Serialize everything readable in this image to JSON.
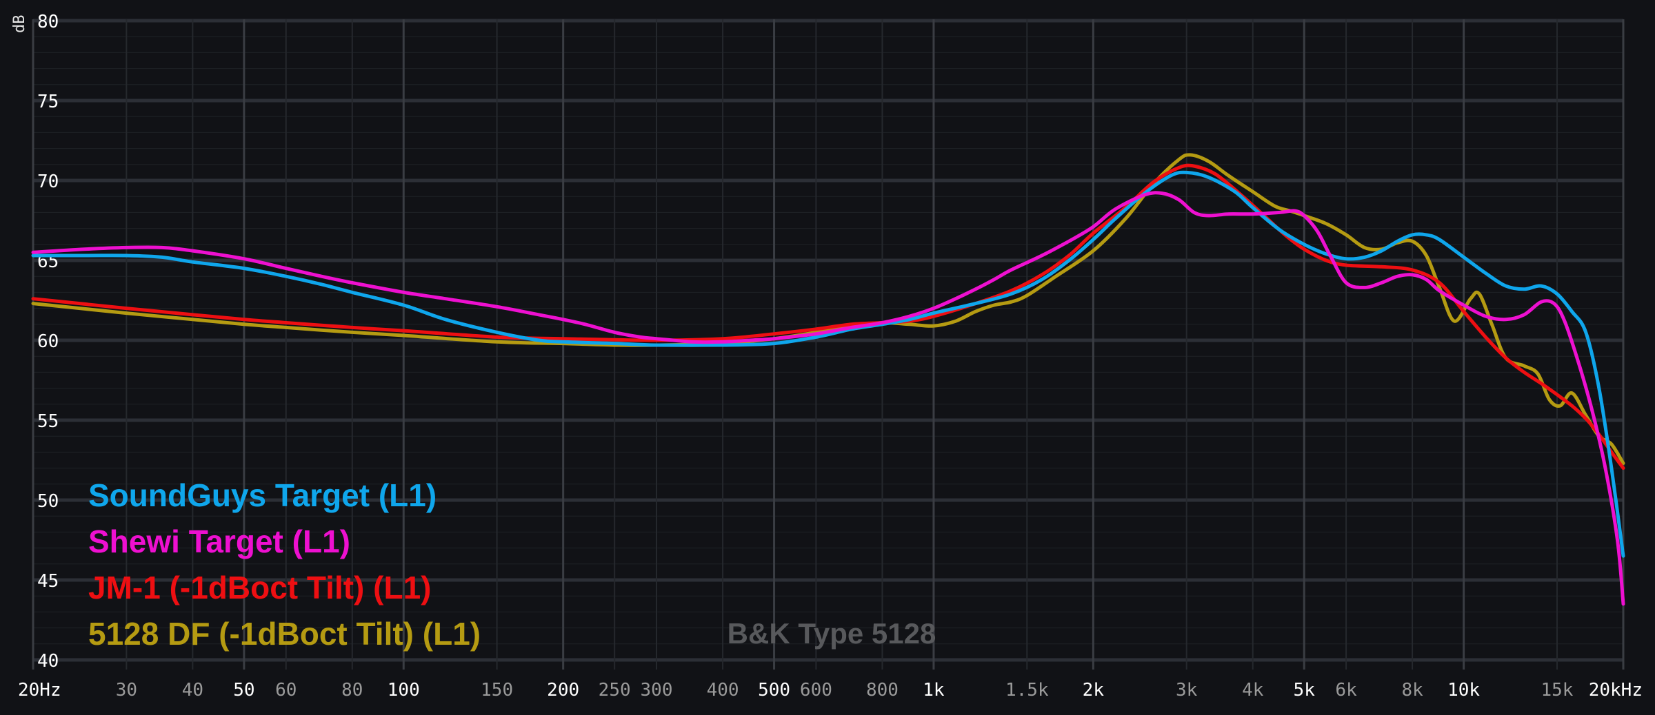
{
  "chart_data": {
    "type": "line",
    "title": "",
    "ylabel": "dB",
    "xlabel": "",
    "x_scale": "log",
    "xlim": [
      20,
      20000
    ],
    "ylim": [
      40,
      80
    ],
    "grid": true,
    "legend_position": "bottom-left",
    "watermark": "B&K Type 5128",
    "colors": {
      "background": "#111216",
      "grid_major": "#2c2f36",
      "grid_minor": "#1f2227",
      "tick_major": "#ffffff",
      "tick_minor": "#9a9a9a"
    },
    "y_ticks": [
      {
        "value": 80,
        "label": "80"
      },
      {
        "value": 75,
        "label": "75"
      },
      {
        "value": 70,
        "label": "70"
      },
      {
        "value": 65,
        "label": "65"
      },
      {
        "value": 60,
        "label": "60"
      },
      {
        "value": 55,
        "label": "55"
      },
      {
        "value": 50,
        "label": "50"
      },
      {
        "value": 45,
        "label": "45"
      },
      {
        "value": 40,
        "label": "40"
      }
    ],
    "x_ticks": [
      {
        "value": 20,
        "label": "20Hz",
        "major": true
      },
      {
        "value": 30,
        "label": "30",
        "major": false
      },
      {
        "value": 40,
        "label": "40",
        "major": false
      },
      {
        "value": 50,
        "label": "50",
        "major": true
      },
      {
        "value": 60,
        "label": "60",
        "major": false
      },
      {
        "value": 80,
        "label": "80",
        "major": false
      },
      {
        "value": 100,
        "label": "100",
        "major": true
      },
      {
        "value": 150,
        "label": "150",
        "major": false
      },
      {
        "value": 200,
        "label": "200",
        "major": true
      },
      {
        "value": 250,
        "label": "250",
        "major": false
      },
      {
        "value": 300,
        "label": "300",
        "major": false
      },
      {
        "value": 400,
        "label": "400",
        "major": false
      },
      {
        "value": 500,
        "label": "500",
        "major": true
      },
      {
        "value": 600,
        "label": "600",
        "major": false
      },
      {
        "value": 800,
        "label": "800",
        "major": false
      },
      {
        "value": 1000,
        "label": "1k",
        "major": true
      },
      {
        "value": 1500,
        "label": "1.5k",
        "major": false
      },
      {
        "value": 2000,
        "label": "2k",
        "major": true
      },
      {
        "value": 3000,
        "label": "3k",
        "major": false
      },
      {
        "value": 4000,
        "label": "4k",
        "major": false
      },
      {
        "value": 5000,
        "label": "5k",
        "major": true
      },
      {
        "value": 6000,
        "label": "6k",
        "major": false
      },
      {
        "value": 8000,
        "label": "8k",
        "major": false
      },
      {
        "value": 10000,
        "label": "10k",
        "major": true
      },
      {
        "value": 15000,
        "label": "15k",
        "major": false
      },
      {
        "value": 20000,
        "label": "20kHz",
        "major": true
      }
    ],
    "series": [
      {
        "name": "SoundGuys Target (L1)",
        "color": "#0fa6ec",
        "points": [
          [
            20,
            65.3
          ],
          [
            25,
            65.3
          ],
          [
            30,
            65.3
          ],
          [
            35,
            65.2
          ],
          [
            40,
            64.9
          ],
          [
            50,
            64.5
          ],
          [
            60,
            64.0
          ],
          [
            70,
            63.5
          ],
          [
            80,
            63.0
          ],
          [
            100,
            62.2
          ],
          [
            120,
            61.3
          ],
          [
            150,
            60.5
          ],
          [
            180,
            60.0
          ],
          [
            200,
            59.9
          ],
          [
            250,
            59.8
          ],
          [
            300,
            59.7
          ],
          [
            400,
            59.7
          ],
          [
            500,
            59.8
          ],
          [
            600,
            60.2
          ],
          [
            700,
            60.7
          ],
          [
            800,
            61.0
          ],
          [
            900,
            61.3
          ],
          [
            1000,
            61.7
          ],
          [
            1200,
            62.3
          ],
          [
            1400,
            62.9
          ],
          [
            1600,
            63.8
          ],
          [
            1800,
            65.0
          ],
          [
            2000,
            66.3
          ],
          [
            2200,
            67.6
          ],
          [
            2500,
            69.2
          ],
          [
            2800,
            70.3
          ],
          [
            3000,
            70.5
          ],
          [
            3300,
            70.2
          ],
          [
            3700,
            69.3
          ],
          [
            4000,
            68.3
          ],
          [
            4500,
            66.9
          ],
          [
            5000,
            66.0
          ],
          [
            5500,
            65.4
          ],
          [
            6000,
            65.1
          ],
          [
            6500,
            65.2
          ],
          [
            7000,
            65.6
          ],
          [
            7500,
            66.2
          ],
          [
            8000,
            66.6
          ],
          [
            8500,
            66.6
          ],
          [
            9000,
            66.3
          ],
          [
            10000,
            65.2
          ],
          [
            11000,
            64.2
          ],
          [
            12000,
            63.4
          ],
          [
            13000,
            63.2
          ],
          [
            14000,
            63.4
          ],
          [
            15000,
            62.9
          ],
          [
            16000,
            61.8
          ],
          [
            17000,
            60.5
          ],
          [
            18000,
            57.0
          ],
          [
            19000,
            52.0
          ],
          [
            20000,
            46.5
          ]
        ]
      },
      {
        "name": "Shewi Target (L1)",
        "color": "#ee10d0",
        "points": [
          [
            20,
            65.5
          ],
          [
            25,
            65.7
          ],
          [
            30,
            65.8
          ],
          [
            35,
            65.8
          ],
          [
            40,
            65.6
          ],
          [
            50,
            65.1
          ],
          [
            60,
            64.5
          ],
          [
            70,
            64.0
          ],
          [
            80,
            63.6
          ],
          [
            100,
            63.0
          ],
          [
            120,
            62.6
          ],
          [
            150,
            62.1
          ],
          [
            180,
            61.6
          ],
          [
            200,
            61.3
          ],
          [
            220,
            61.0
          ],
          [
            250,
            60.5
          ],
          [
            280,
            60.2
          ],
          [
            300,
            60.1
          ],
          [
            350,
            59.9
          ],
          [
            400,
            59.9
          ],
          [
            450,
            60.0
          ],
          [
            500,
            60.1
          ],
          [
            600,
            60.4
          ],
          [
            700,
            60.8
          ],
          [
            800,
            61.1
          ],
          [
            900,
            61.5
          ],
          [
            1000,
            62.0
          ],
          [
            1100,
            62.6
          ],
          [
            1200,
            63.2
          ],
          [
            1300,
            63.8
          ],
          [
            1400,
            64.4
          ],
          [
            1600,
            65.3
          ],
          [
            1800,
            66.2
          ],
          [
            2000,
            67.1
          ],
          [
            2200,
            68.2
          ],
          [
            2500,
            69.1
          ],
          [
            2700,
            69.2
          ],
          [
            2900,
            68.8
          ],
          [
            3100,
            68.0
          ],
          [
            3300,
            67.8
          ],
          [
            3600,
            67.9
          ],
          [
            4000,
            67.9
          ],
          [
            4500,
            68.0
          ],
          [
            4800,
            68.1
          ],
          [
            5000,
            67.8
          ],
          [
            5300,
            66.8
          ],
          [
            5600,
            65.3
          ],
          [
            6000,
            63.6
          ],
          [
            6500,
            63.3
          ],
          [
            7000,
            63.6
          ],
          [
            7500,
            64.0
          ],
          [
            8000,
            64.1
          ],
          [
            8500,
            63.8
          ],
          [
            9000,
            63.1
          ],
          [
            10000,
            62.2
          ],
          [
            11000,
            61.5
          ],
          [
            12000,
            61.3
          ],
          [
            13000,
            61.6
          ],
          [
            14000,
            62.4
          ],
          [
            14800,
            62.3
          ],
          [
            15500,
            61.2
          ],
          [
            16500,
            58.5
          ],
          [
            17500,
            55.5
          ],
          [
            18500,
            52.0
          ],
          [
            19500,
            47.5
          ],
          [
            20000,
            43.5
          ]
        ]
      },
      {
        "name": "JM-1 (-1dBoct Tilt) (L1)",
        "color": "#ee0f12",
        "points": [
          [
            20,
            62.6
          ],
          [
            30,
            62.0
          ],
          [
            40,
            61.6
          ],
          [
            50,
            61.3
          ],
          [
            60,
            61.1
          ],
          [
            80,
            60.8
          ],
          [
            100,
            60.6
          ],
          [
            150,
            60.2
          ],
          [
            200,
            60.1
          ],
          [
            300,
            60.0
          ],
          [
            400,
            60.1
          ],
          [
            500,
            60.4
          ],
          [
            600,
            60.7
          ],
          [
            700,
            61.0
          ],
          [
            800,
            61.1
          ],
          [
            900,
            61.2
          ],
          [
            1000,
            61.5
          ],
          [
            1200,
            62.3
          ],
          [
            1400,
            63.1
          ],
          [
            1600,
            64.1
          ],
          [
            1800,
            65.3
          ],
          [
            2000,
            66.7
          ],
          [
            2300,
            68.3
          ],
          [
            2600,
            69.9
          ],
          [
            2900,
            70.8
          ],
          [
            3100,
            70.9
          ],
          [
            3400,
            70.4
          ],
          [
            3800,
            69.1
          ],
          [
            4200,
            67.8
          ],
          [
            4600,
            66.6
          ],
          [
            5000,
            65.7
          ],
          [
            5500,
            65.0
          ],
          [
            6000,
            64.7
          ],
          [
            7000,
            64.6
          ],
          [
            8000,
            64.4
          ],
          [
            9000,
            63.6
          ],
          [
            10000,
            61.8
          ],
          [
            11000,
            60.2
          ],
          [
            12000,
            58.9
          ],
          [
            13000,
            58.0
          ],
          [
            14000,
            57.3
          ],
          [
            15000,
            56.6
          ],
          [
            16000,
            55.9
          ],
          [
            17000,
            55.1
          ],
          [
            18000,
            54.1
          ],
          [
            19000,
            53.0
          ],
          [
            20000,
            52.0
          ]
        ]
      },
      {
        "name": "5128 DF (-1dBoct Tilt) (L1)",
        "color": "#b59b12",
        "points": [
          [
            20,
            62.3
          ],
          [
            30,
            61.7
          ],
          [
            40,
            61.3
          ],
          [
            50,
            61.0
          ],
          [
            60,
            60.8
          ],
          [
            80,
            60.5
          ],
          [
            100,
            60.3
          ],
          [
            150,
            59.9
          ],
          [
            200,
            59.8
          ],
          [
            250,
            59.7
          ],
          [
            300,
            59.7
          ],
          [
            400,
            59.8
          ],
          [
            500,
            60.1
          ],
          [
            600,
            60.5
          ],
          [
            700,
            60.9
          ],
          [
            800,
            61.1
          ],
          [
            900,
            61.0
          ],
          [
            1000,
            60.9
          ],
          [
            1100,
            61.2
          ],
          [
            1200,
            61.8
          ],
          [
            1300,
            62.2
          ],
          [
            1400,
            62.4
          ],
          [
            1500,
            62.8
          ],
          [
            1700,
            64.0
          ],
          [
            2000,
            65.6
          ],
          [
            2300,
            67.6
          ],
          [
            2600,
            69.8
          ],
          [
            2900,
            71.3
          ],
          [
            3050,
            71.6
          ],
          [
            3300,
            71.2
          ],
          [
            3600,
            70.3
          ],
          [
            4000,
            69.3
          ],
          [
            4400,
            68.4
          ],
          [
            4700,
            68.1
          ],
          [
            5000,
            67.8
          ],
          [
            5500,
            67.3
          ],
          [
            6000,
            66.6
          ],
          [
            6500,
            65.8
          ],
          [
            7000,
            65.7
          ],
          [
            7500,
            66.1
          ],
          [
            8000,
            66.2
          ],
          [
            8500,
            65.3
          ],
          [
            9000,
            63.3
          ],
          [
            9600,
            61.2
          ],
          [
            10300,
            62.6
          ],
          [
            10700,
            62.9
          ],
          [
            11300,
            61.0
          ],
          [
            12000,
            58.9
          ],
          [
            13000,
            58.4
          ],
          [
            13800,
            57.9
          ],
          [
            14500,
            56.3
          ],
          [
            15200,
            55.9
          ],
          [
            16000,
            56.7
          ],
          [
            17000,
            55.3
          ],
          [
            18000,
            54.0
          ],
          [
            19000,
            53.5
          ],
          [
            20000,
            52.3
          ]
        ]
      }
    ]
  }
}
